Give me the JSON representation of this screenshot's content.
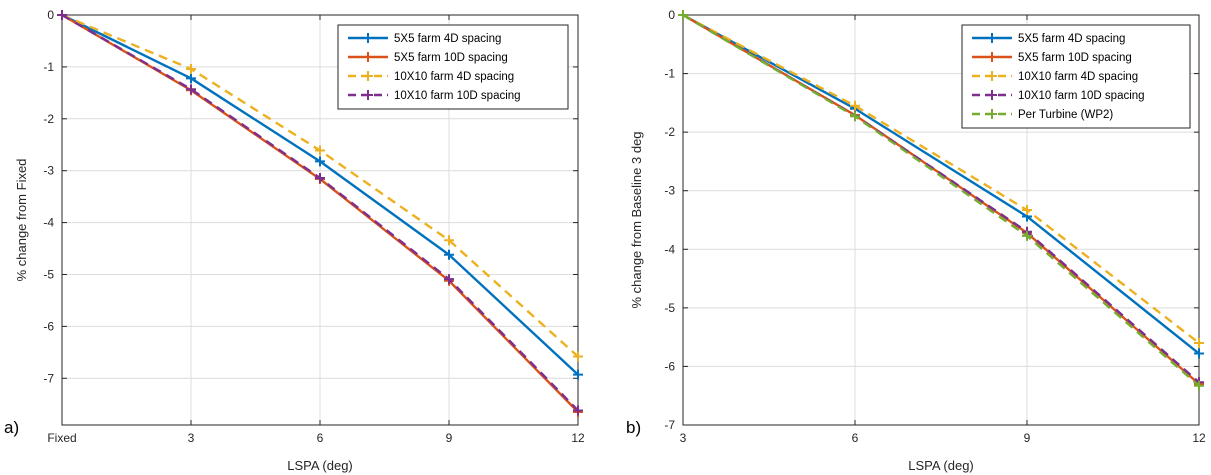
{
  "chart_data": [
    {
      "type": "line",
      "panel_label": "a)",
      "xlabel": "LSPA (deg)",
      "ylabel": "% change from Fixed",
      "x": [
        0,
        3,
        6,
        9,
        12
      ],
      "xticklabels": [
        "Fixed",
        "3",
        "6",
        "9",
        "12"
      ],
      "xlim": [
        0,
        12
      ],
      "ylim": [
        -7.9,
        0
      ],
      "yticks": [
        0,
        -1,
        -2,
        -3,
        -4,
        -5,
        -6,
        -7
      ],
      "grid": true,
      "legend_position": "top-right",
      "series": [
        {
          "name": "5X5 farm 4D spacing",
          "values": [
            0,
            -1.22,
            -2.82,
            -4.62,
            -6.93
          ],
          "color": "#0072BD",
          "dash": "solid"
        },
        {
          "name": "5X5 farm 10D spacing",
          "values": [
            0,
            -1.45,
            -3.16,
            -5.12,
            -7.65
          ],
          "color": "#D95319",
          "dash": "solid"
        },
        {
          "name": "10X10 farm 4D spacing",
          "values": [
            0,
            -1.04,
            -2.61,
            -4.34,
            -6.58
          ],
          "color": "#EDB120",
          "dash": "dashed"
        },
        {
          "name": "10X10 farm 10D spacing",
          "values": [
            0,
            -1.43,
            -3.14,
            -5.09,
            -7.62
          ],
          "color": "#7E2F8E",
          "dash": "dashed"
        }
      ]
    },
    {
      "type": "line",
      "panel_label": "b)",
      "xlabel": "LSPA (deg)",
      "ylabel": "% change from Baseline 3 deg",
      "x": [
        3,
        6,
        9,
        12
      ],
      "xticklabels": [
        "3",
        "6",
        "9",
        "12"
      ],
      "xlim": [
        3,
        12
      ],
      "ylim": [
        -7,
        0
      ],
      "yticks": [
        0,
        -1,
        -2,
        -3,
        -4,
        -5,
        -6,
        -7
      ],
      "grid": true,
      "legend_position": "top-right",
      "series": [
        {
          "name": "5X5 farm 4D spacing",
          "values": [
            0,
            -1.6,
            -3.44,
            -5.78
          ],
          "color": "#0072BD",
          "dash": "solid"
        },
        {
          "name": "5X5 farm 10D spacing",
          "values": [
            0,
            -1.71,
            -3.72,
            -6.3
          ],
          "color": "#D95319",
          "dash": "solid"
        },
        {
          "name": "10X10 farm 4D spacing",
          "values": [
            0,
            -1.55,
            -3.33,
            -5.6
          ],
          "color": "#EDB120",
          "dash": "dashed"
        },
        {
          "name": "10X10 farm 10D spacing",
          "values": [
            0,
            -1.72,
            -3.7,
            -6.27
          ],
          "color": "#7E2F8E",
          "dash": "dashed"
        },
        {
          "name": "Per Turbine (WP2)",
          "values": [
            0,
            -1.73,
            -3.77,
            -6.33
          ],
          "color": "#77AC30",
          "dash": "dashed"
        }
      ]
    }
  ]
}
